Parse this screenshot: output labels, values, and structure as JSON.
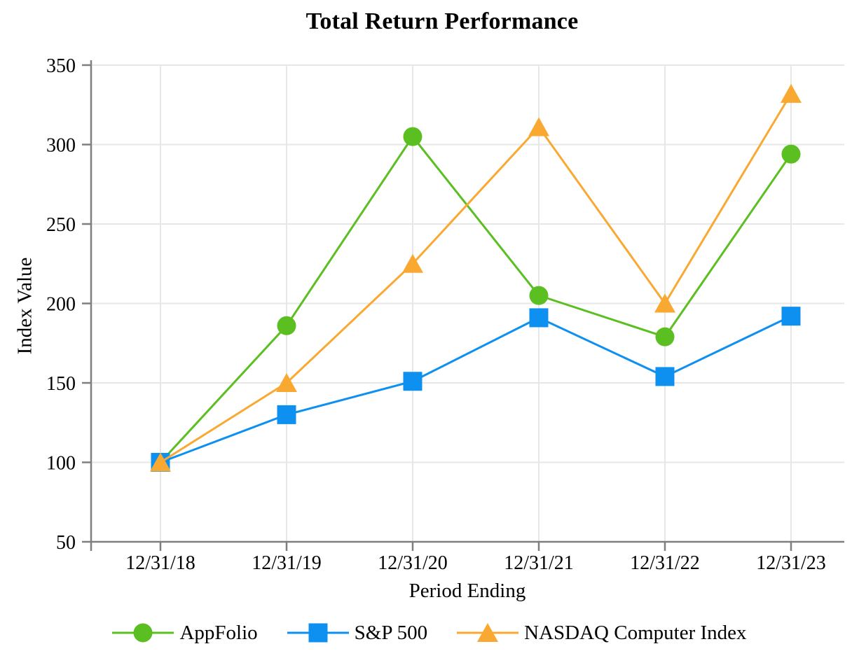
{
  "chart_data": {
    "type": "line",
    "title": "Total Return Performance",
    "xlabel": "Period Ending",
    "ylabel": "Index Value",
    "categories": [
      "12/31/18",
      "12/31/19",
      "12/31/20",
      "12/31/21",
      "12/31/22",
      "12/31/23"
    ],
    "series": [
      {
        "name": "AppFolio",
        "marker": "circle",
        "color": "#5BBF21",
        "values": [
          100,
          186,
          305,
          205,
          179,
          294
        ]
      },
      {
        "name": "S&P 500",
        "marker": "square",
        "color": "#0D90F0",
        "values": [
          100,
          130,
          151,
          191,
          154,
          192
        ]
      },
      {
        "name": "NASDAQ Computer Index",
        "marker": "triangle",
        "color": "#F9A932",
        "values": [
          100,
          150,
          225,
          311,
          200,
          332
        ]
      }
    ],
    "ylim": [
      50,
      350
    ],
    "yticks": [
      50,
      100,
      150,
      200,
      250,
      300,
      350
    ],
    "grid": true,
    "legend_position": "bottom",
    "colors": {
      "gridline": "#E7E7E7",
      "axis": "#7F7F7F",
      "text": "#000000",
      "background": "#FFFFFF"
    }
  }
}
